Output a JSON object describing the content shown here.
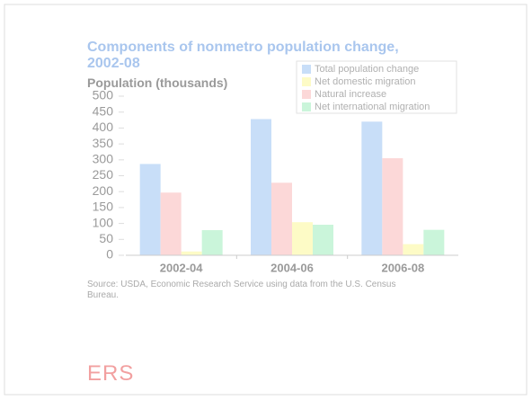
{
  "chart_data": {
    "type": "bar",
    "title": "Components of nonmetro population change, 2002-08",
    "y_label": "Population (thousands)",
    "source": "Source: USDA, Economic Research Service using data from the U.S. Census Bureau.",
    "logo": "ERS",
    "categories": [
      "2002-04",
      "2004-06",
      "2006-08"
    ],
    "series": [
      {
        "name": "Total population change",
        "color": "#c8def8",
        "values": [
          287,
          428,
          420
        ]
      },
      {
        "name": "Net domestic migration",
        "color": "#fdfbc6",
        "values": [
          12,
          104,
          35
        ]
      },
      {
        "name": "Natural increase",
        "color": "#fcd8d8",
        "values": [
          197,
          228,
          305
        ]
      },
      {
        "name": "Net international migration",
        "color": "#caf5da",
        "values": [
          79,
          96,
          80
        ]
      }
    ],
    "ylim": [
      0,
      500
    ],
    "yticks": [
      0,
      50,
      100,
      150,
      200,
      250,
      300,
      350,
      400,
      450,
      500
    ]
  }
}
